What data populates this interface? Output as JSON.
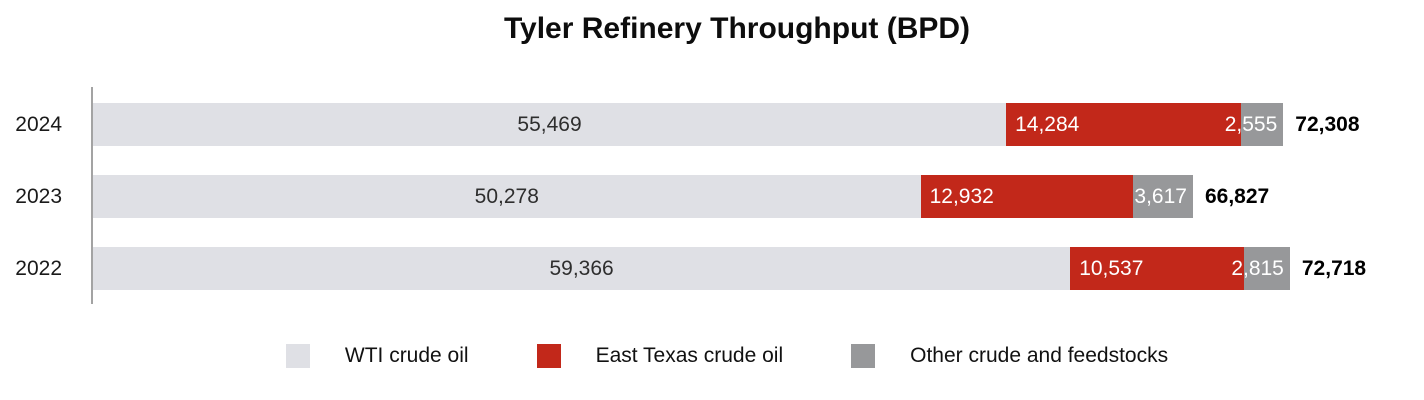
{
  "title": "Tyler Refinery Throughput (BPD)",
  "chart_data": {
    "type": "bar",
    "orientation": "horizontal",
    "stacked": true,
    "title": "Tyler Refinery Throughput (BPD)",
    "categories": [
      "2024",
      "2023",
      "2022"
    ],
    "series": [
      {
        "name": "WTI crude oil",
        "color": "#dfe0e5",
        "values": [
          55469,
          50278,
          59366
        ],
        "labels": [
          "55,469",
          "50,278",
          "59,366"
        ]
      },
      {
        "name": "East Texas crude oil",
        "color": "#c2281a",
        "values": [
          14284,
          12932,
          10537
        ],
        "labels": [
          "14,284",
          "12,932",
          "10,537"
        ]
      },
      {
        "name": "Other crude and feedstocks",
        "color": "#97989a",
        "values": [
          2555,
          3617,
          2815
        ],
        "labels": [
          "2,555",
          "3,617",
          "2,815"
        ]
      }
    ],
    "totals": [
      72308,
      66827,
      72718
    ],
    "total_labels": [
      "72,308",
      "66,827",
      "72,718"
    ],
    "xlim": [
      0,
      72718
    ],
    "value_unit": "BPD",
    "grid": false,
    "legend_position": "bottom"
  },
  "legend": {
    "items": [
      {
        "label": "WTI crude oil",
        "color": "#dfe0e5"
      },
      {
        "label": "East Texas crude oil",
        "color": "#c2281a"
      },
      {
        "label": "Other crude and feedstocks",
        "color": "#97989a"
      }
    ]
  },
  "colors": {
    "axis": "#a3a3a3",
    "wti_label_text": "#2e2e2e",
    "inverse_label_text": "#ffffff",
    "total_text": "#000000"
  }
}
